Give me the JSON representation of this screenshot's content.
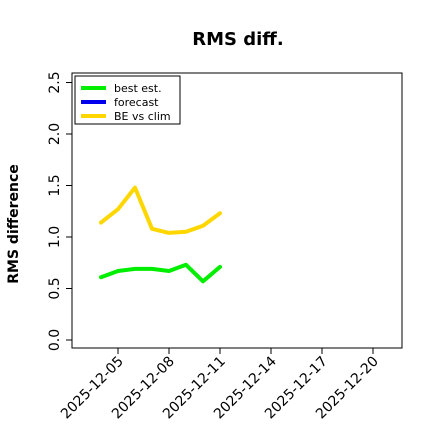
{
  "chart_data": {
    "type": "line",
    "title": "RMS diff.",
    "xlabel": "",
    "ylabel": "RMS difference",
    "ylim": [
      0.0,
      2.5
    ],
    "yticks": [
      "0.0",
      "0.5",
      "1.0",
      "1.5",
      "2.0",
      "2.5"
    ],
    "xlim": [
      "2025-12-03",
      "2025-12-21"
    ],
    "xticks": [
      "2025-12-05",
      "2025-12-08",
      "2025-12-11",
      "2025-12-14",
      "2025-12-17",
      "2025-12-20"
    ],
    "highlighted_xtick": "2025-12-11",
    "highlight_color": "#228b22",
    "legend_position": "top-left",
    "grid": false,
    "series": [
      {
        "name": "best est.",
        "color": "#00ee00",
        "x": [
          "2025-12-04",
          "2025-12-05",
          "2025-12-06",
          "2025-12-07",
          "2025-12-08",
          "2025-12-09",
          "2025-12-10",
          "2025-12-11"
        ],
        "y": [
          0.61,
          0.67,
          0.69,
          0.69,
          0.67,
          0.73,
          0.57,
          0.71
        ]
      },
      {
        "name": "forecast",
        "color": "#0000ee",
        "x": [],
        "y": []
      },
      {
        "name": "BE vs clim",
        "color": "#ffd700",
        "x": [
          "2025-12-04",
          "2025-12-05",
          "2025-12-06",
          "2025-12-07",
          "2025-12-08",
          "2025-12-09",
          "2025-12-10",
          "2025-12-11"
        ],
        "y": [
          1.14,
          1.27,
          1.48,
          1.08,
          1.04,
          1.05,
          1.11,
          1.23
        ]
      }
    ]
  }
}
